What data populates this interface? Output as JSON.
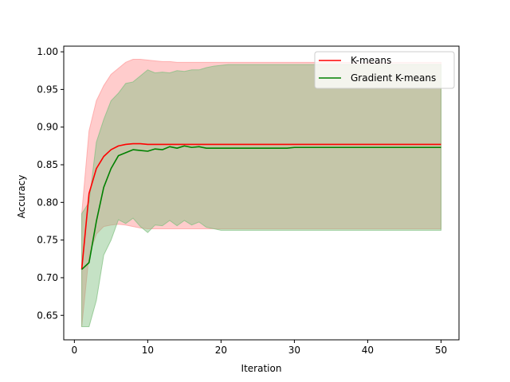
{
  "chart_data": {
    "type": "line",
    "title": "",
    "xlabel": "Iteration",
    "ylabel": "Accuracy",
    "xlim": [
      -1.45,
      52.45
    ],
    "ylim": [
      0.6175,
      1.0075
    ],
    "xticks": [
      0,
      10,
      20,
      30,
      40,
      50
    ],
    "yticks": [
      0.65,
      0.7,
      0.75,
      0.8,
      0.85,
      0.9,
      0.95,
      1.0
    ],
    "ytick_labels": [
      "0.65",
      "0.70",
      "0.75",
      "0.80",
      "0.85",
      "0.90",
      "0.95",
      "1.00"
    ],
    "grid": false,
    "legend_position": "top-right",
    "x": [
      1,
      2,
      3,
      4,
      5,
      6,
      7,
      8,
      9,
      10,
      11,
      12,
      13,
      14,
      15,
      16,
      17,
      18,
      19,
      20,
      21,
      22,
      23,
      24,
      25,
      26,
      27,
      28,
      29,
      30,
      31,
      32,
      33,
      34,
      35,
      36,
      37,
      38,
      39,
      40,
      41,
      42,
      43,
      44,
      45,
      46,
      47,
      48,
      49,
      50
    ],
    "series": [
      {
        "name": "K-means",
        "color": "#ff0000",
        "values": [
          0.711,
          0.812,
          0.845,
          0.861,
          0.87,
          0.875,
          0.877,
          0.878,
          0.878,
          0.877,
          0.877,
          0.877,
          0.877,
          0.877,
          0.877,
          0.877,
          0.877,
          0.877,
          0.877,
          0.877,
          0.877,
          0.877,
          0.877,
          0.877,
          0.877,
          0.877,
          0.877,
          0.877,
          0.877,
          0.877,
          0.877,
          0.877,
          0.877,
          0.877,
          0.877,
          0.877,
          0.877,
          0.877,
          0.877,
          0.877,
          0.877,
          0.877,
          0.877,
          0.877,
          0.877,
          0.877,
          0.877,
          0.877,
          0.877,
          0.877
        ],
        "upper": [
          0.785,
          0.895,
          0.935,
          0.955,
          0.97,
          0.978,
          0.986,
          0.99,
          0.99,
          0.989,
          0.988,
          0.987,
          0.987,
          0.986,
          0.986,
          0.986,
          0.986,
          0.986,
          0.986,
          0.986,
          0.986,
          0.986,
          0.986,
          0.986,
          0.986,
          0.986,
          0.986,
          0.986,
          0.986,
          0.986,
          0.986,
          0.986,
          0.986,
          0.986,
          0.986,
          0.986,
          0.986,
          0.986,
          0.986,
          0.986,
          0.986,
          0.986,
          0.986,
          0.986,
          0.986,
          0.986,
          0.986,
          0.986,
          0.986,
          0.986
        ],
        "lower": [
          0.635,
          0.73,
          0.758,
          0.768,
          0.77,
          0.771,
          0.77,
          0.768,
          0.766,
          0.765,
          0.765,
          0.765,
          0.765,
          0.765,
          0.765,
          0.765,
          0.765,
          0.765,
          0.765,
          0.765,
          0.765,
          0.765,
          0.765,
          0.765,
          0.765,
          0.765,
          0.765,
          0.765,
          0.765,
          0.765,
          0.765,
          0.765,
          0.765,
          0.765,
          0.765,
          0.765,
          0.765,
          0.765,
          0.765,
          0.765,
          0.765,
          0.765,
          0.765,
          0.765,
          0.765,
          0.765,
          0.765,
          0.765,
          0.765,
          0.765
        ],
        "band_color": "#ff9999"
      },
      {
        "name": "Gradient K-means",
        "color": "#008000",
        "values": [
          0.711,
          0.72,
          0.775,
          0.82,
          0.845,
          0.862,
          0.866,
          0.87,
          0.869,
          0.868,
          0.871,
          0.87,
          0.874,
          0.872,
          0.875,
          0.873,
          0.874,
          0.872,
          0.872,
          0.872,
          0.872,
          0.872,
          0.872,
          0.872,
          0.872,
          0.872,
          0.872,
          0.872,
          0.872,
          0.873,
          0.873,
          0.873,
          0.873,
          0.873,
          0.873,
          0.873,
          0.873,
          0.873,
          0.873,
          0.873,
          0.873,
          0.873,
          0.873,
          0.873,
          0.873,
          0.873,
          0.873,
          0.873,
          0.873,
          0.873
        ],
        "upper": [
          0.785,
          0.8,
          0.88,
          0.91,
          0.935,
          0.945,
          0.958,
          0.96,
          0.968,
          0.976,
          0.972,
          0.973,
          0.972,
          0.975,
          0.974,
          0.976,
          0.976,
          0.979,
          0.981,
          0.982,
          0.983,
          0.983,
          0.983,
          0.983,
          0.983,
          0.983,
          0.983,
          0.983,
          0.983,
          0.983,
          0.983,
          0.983,
          0.983,
          0.983,
          0.983,
          0.983,
          0.983,
          0.983,
          0.983,
          0.983,
          0.983,
          0.983,
          0.983,
          0.983,
          0.983,
          0.983,
          0.983,
          0.983,
          0.983,
          0.983
        ],
        "lower": [
          0.635,
          0.635,
          0.67,
          0.73,
          0.75,
          0.777,
          0.772,
          0.779,
          0.768,
          0.76,
          0.77,
          0.769,
          0.776,
          0.769,
          0.776,
          0.77,
          0.774,
          0.767,
          0.765,
          0.763,
          0.763,
          0.763,
          0.763,
          0.763,
          0.763,
          0.763,
          0.763,
          0.763,
          0.763,
          0.763,
          0.763,
          0.763,
          0.763,
          0.763,
          0.763,
          0.763,
          0.763,
          0.763,
          0.763,
          0.763,
          0.763,
          0.763,
          0.763,
          0.763,
          0.763,
          0.763,
          0.763,
          0.763,
          0.763,
          0.763
        ],
        "band_color": "#7fbf7f"
      }
    ]
  }
}
